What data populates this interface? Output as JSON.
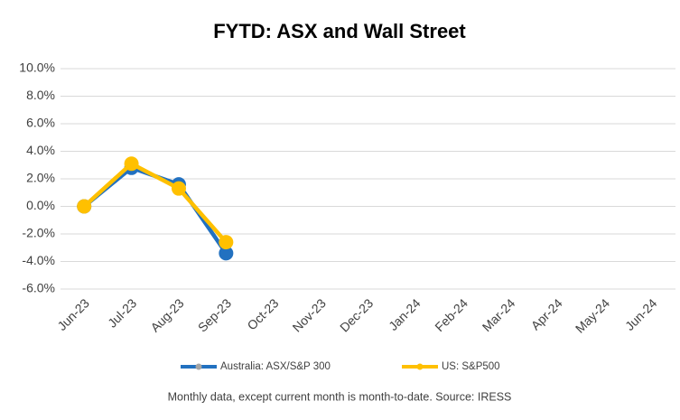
{
  "chart_data": {
    "type": "line",
    "title": "FYTD: ASX and Wall Street",
    "categories": [
      "Jun-23",
      "Jul-23",
      "Aug-23",
      "Sep-23",
      "Oct-23",
      "Nov-23",
      "Dec-23",
      "Jan-24",
      "Feb-24",
      "Mar-24",
      "Apr-24",
      "May-24",
      "Jun-24"
    ],
    "series": [
      {
        "name": "Australia: ASX/S&P 300",
        "color": "#2271c0",
        "values": [
          0,
          2.8,
          1.6,
          -3.4,
          null,
          null,
          null,
          null,
          null,
          null,
          null,
          null,
          null
        ]
      },
      {
        "name": "US: S&P500",
        "color": "#ffc000",
        "values": [
          0,
          3.1,
          1.3,
          -2.6,
          null,
          null,
          null,
          null,
          null,
          null,
          null,
          null,
          null
        ]
      }
    ],
    "ylim": [
      -6,
      10
    ],
    "yticks": [
      {
        "value": -6,
        "label": "-6.0%"
      },
      {
        "value": -4,
        "label": "-4.0%"
      },
      {
        "value": -2,
        "label": "-2.0%"
      },
      {
        "value": 0,
        "label": "0.0%"
      },
      {
        "value": 2,
        "label": "2.0%"
      },
      {
        "value": 4,
        "label": "4.0%"
      },
      {
        "value": 6,
        "label": "6.0%"
      },
      {
        "value": 8,
        "label": "8.0%"
      },
      {
        "value": 10,
        "label": "10.0%"
      }
    ],
    "grid": true,
    "legend": "bottom",
    "note": "Monthly data, except current month is month-to-date.  Source: IRESS"
  }
}
